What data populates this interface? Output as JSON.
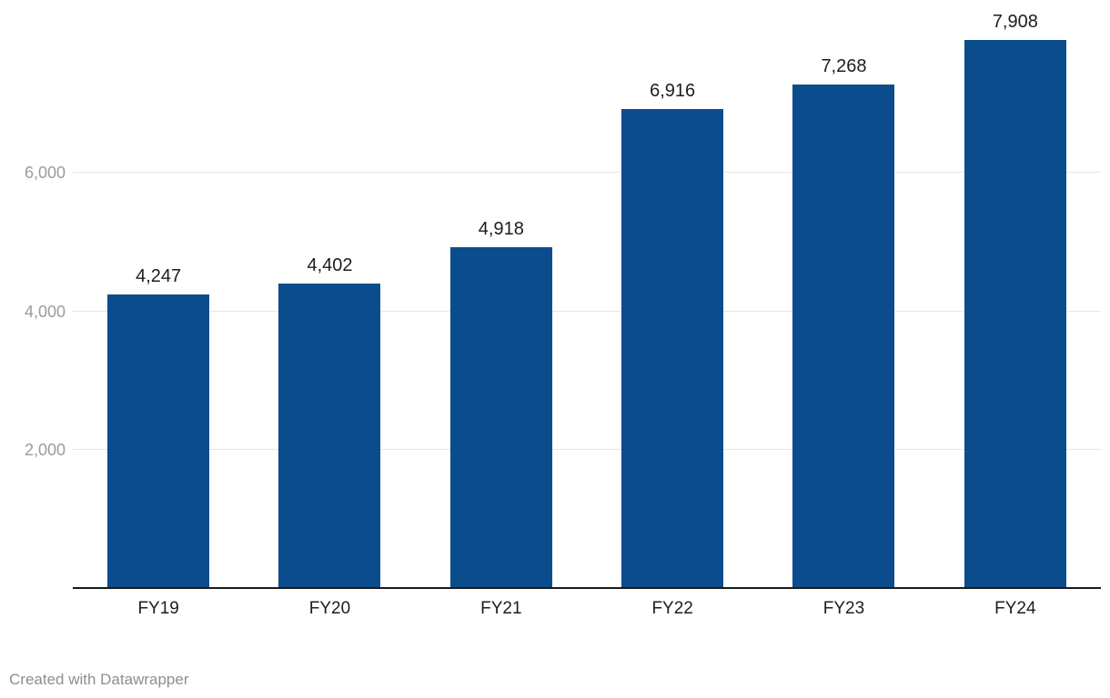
{
  "chart_data": {
    "type": "bar",
    "categories": [
      "FY19",
      "FY20",
      "FY21",
      "FY22",
      "FY23",
      "FY24"
    ],
    "values": [
      4247,
      4402,
      4918,
      6916,
      7268,
      7908
    ],
    "value_labels": [
      "4,247",
      "4,402",
      "4,918",
      "6,916",
      "7,268",
      "7,908"
    ],
    "title": "",
    "xlabel": "",
    "ylabel": "",
    "ylim": [
      0,
      8000
    ],
    "yticks": [
      2000,
      4000,
      6000
    ],
    "ytick_labels": [
      "2,000",
      "4,000",
      "6,000"
    ],
    "grid": true,
    "legend": "none",
    "bar_color": "#0b4d8c"
  },
  "colors": {
    "bar": "#0b4d8c",
    "grid": "#e6e6e6",
    "axis_text": "#9b9b9b",
    "label_text": "#1d1d1d",
    "baseline": "#1a1a1a"
  },
  "footer": {
    "credit": "Created with Datawrapper"
  }
}
